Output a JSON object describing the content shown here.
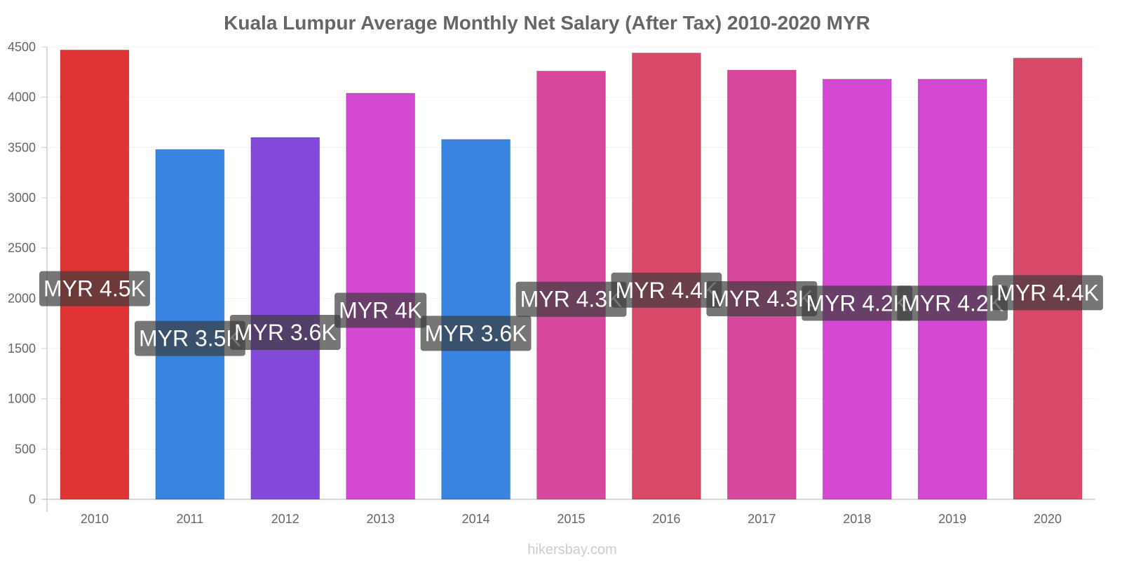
{
  "chart_data": {
    "type": "bar",
    "title": "Kuala Lumpur Average Monthly Net Salary (After Tax) 2010-2020 MYR",
    "categories": [
      "2010",
      "2011",
      "2012",
      "2013",
      "2014",
      "2015",
      "2016",
      "2017",
      "2018",
      "2019",
      "2020"
    ],
    "values": [
      4470,
      3480,
      3600,
      4040,
      3580,
      4260,
      4440,
      4270,
      4180,
      4180,
      4390
    ],
    "data_labels": [
      "MYR 4.5K",
      "MYR 3.5K",
      "MYR 3.6K",
      "MYR 4K",
      "MYR 3.6K",
      "MYR 4.3K",
      "MYR 4.4K",
      "MYR 4.3K",
      "MYR 4.2K",
      "MYR 4.2K",
      "MYR 4.4K"
    ],
    "bar_colors": [
      "#e03434",
      "#3884e0",
      "#8349d8",
      "#d448d4",
      "#3884e0",
      "#d8479e",
      "#d84868",
      "#d8479e",
      "#d448d4",
      "#d448d4",
      "#d84868"
    ],
    "label_bg_colors": [
      "#6e1a1a",
      "#1c4270",
      "#41246c",
      "#6a246a",
      "#1c4270",
      "#6c234f",
      "#6c2434",
      "#6c234f",
      "#6a246a",
      "#6a246a",
      "#6c2434"
    ],
    "ylim": [
      0,
      4500
    ],
    "yticks": [
      0,
      500,
      1000,
      1500,
      2000,
      2500,
      3000,
      3500,
      4000,
      4500
    ],
    "grid": true,
    "legend": "none",
    "xlabel": "",
    "ylabel": ""
  },
  "credit": "hikersbay.com"
}
